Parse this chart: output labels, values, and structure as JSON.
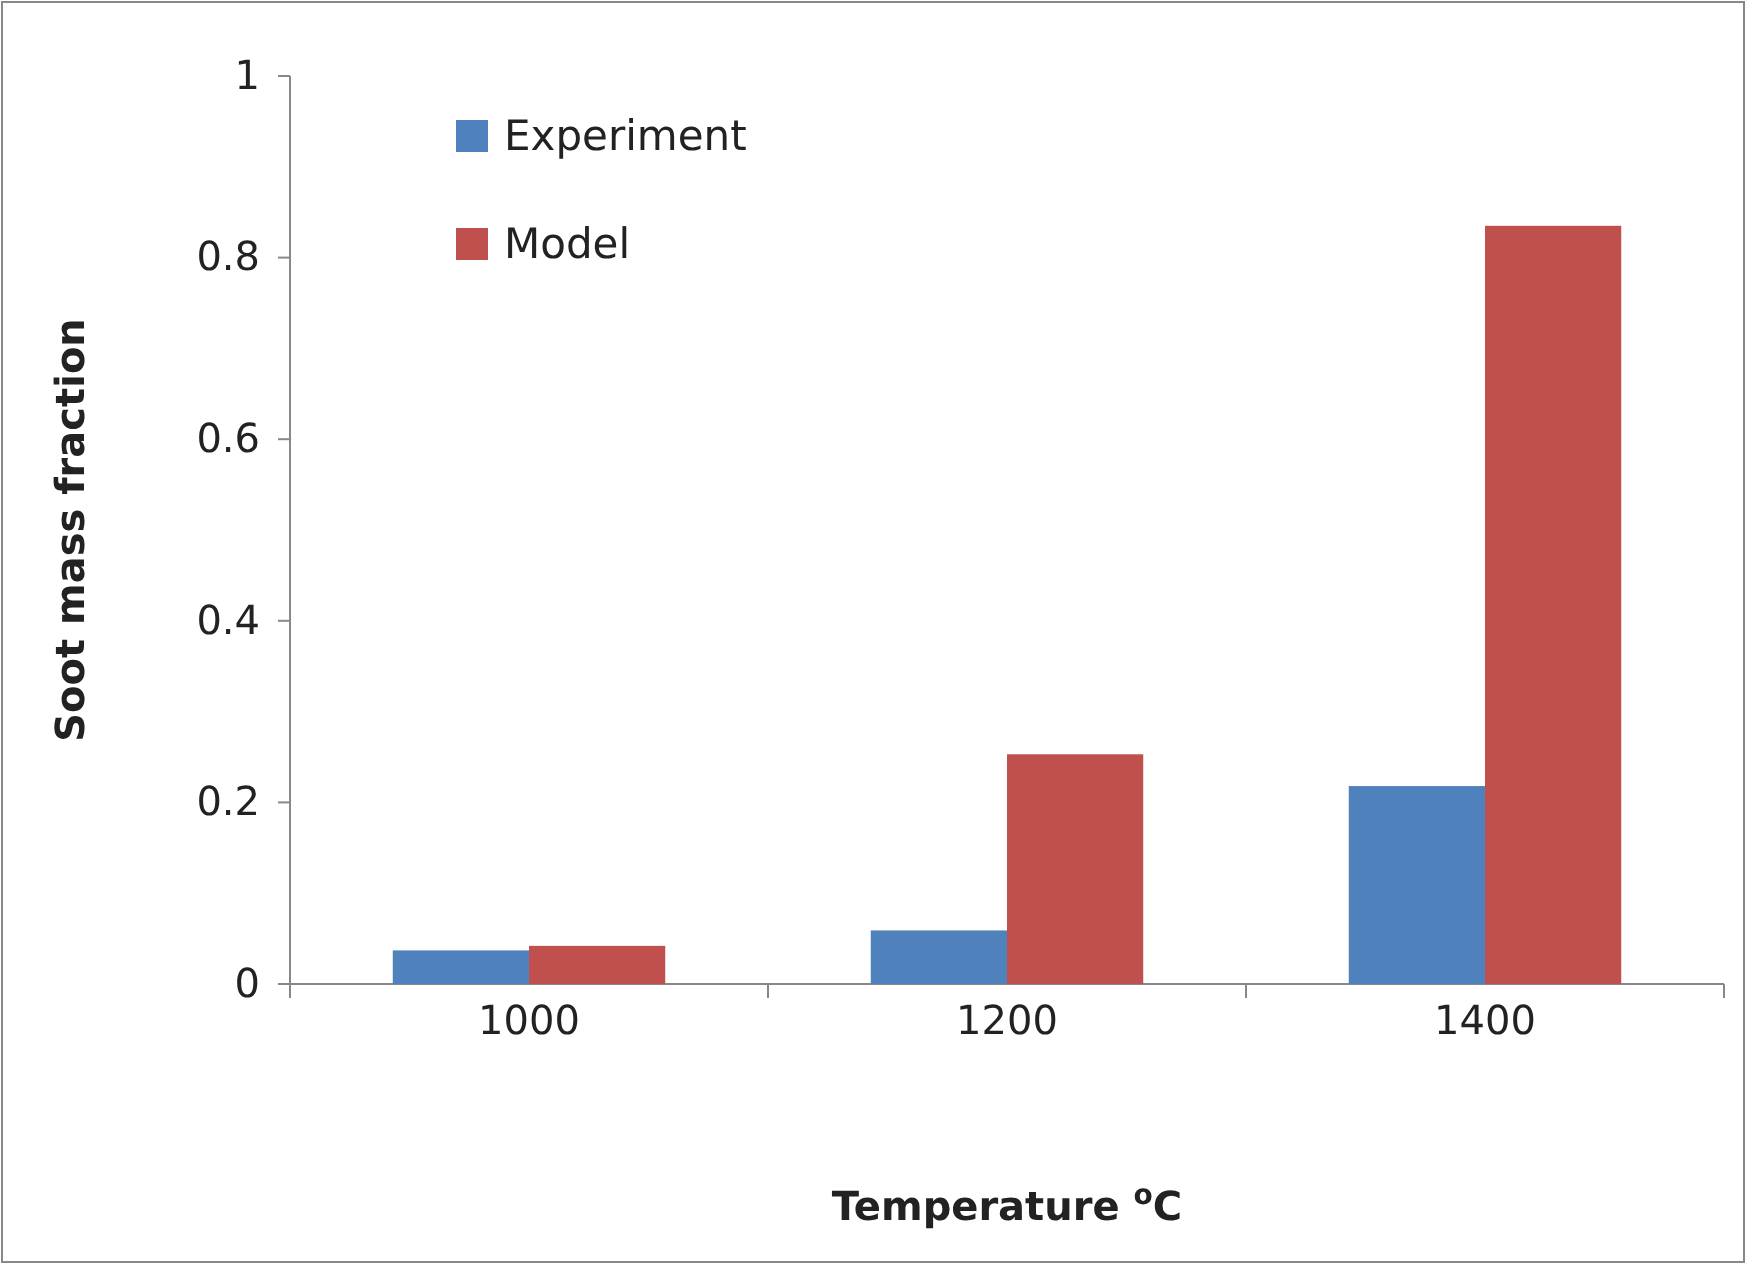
{
  "chart_data": {
    "type": "bar",
    "xlabel": "Temperature $^{o}$C",
    "ylabel": "Soot mass fraction",
    "categories": [
      "1000",
      "1200",
      "1400"
    ],
    "series": [
      {
        "name": "Experiment",
        "color": "#4f81bd",
        "values": [
          0.037,
          0.059,
          0.218
        ]
      },
      {
        "name": "Model",
        "color": "#c0504d",
        "values": [
          0.042,
          0.253,
          0.835
        ]
      }
    ],
    "ylim": [
      0,
      1
    ],
    "yticks": [
      0,
      0.2,
      0.4,
      0.6,
      0.8,
      1
    ],
    "grid": false,
    "legend": "top left"
  }
}
